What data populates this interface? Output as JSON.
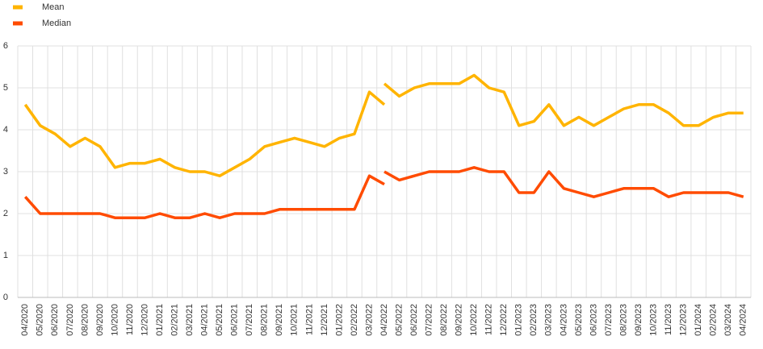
{
  "chart_data": {
    "type": "line",
    "categories": [
      "04/2020",
      "05/2020",
      "06/2020",
      "07/2020",
      "08/2020",
      "09/2020",
      "10/2020",
      "11/2020",
      "12/2020",
      "01/2021",
      "02/2021",
      "03/2021",
      "04/2021",
      "05/2021",
      "06/2021",
      "07/2021",
      "08/2021",
      "09/2021",
      "10/2021",
      "11/2021",
      "12/2021",
      "01/2022",
      "02/2022",
      "03/2022",
      "04/2022",
      "05/2022",
      "06/2022",
      "07/2022",
      "08/2022",
      "09/2022",
      "10/2022",
      "11/2022",
      "12/2022",
      "01/2023",
      "02/2023",
      "03/2023",
      "04/2023",
      "05/2023",
      "06/2023",
      "07/2023",
      "08/2023",
      "09/2023",
      "10/2023",
      "11/2023",
      "12/2023",
      "01/2024",
      "02/2024",
      "03/2024",
      "04/2024"
    ],
    "series": [
      {
        "name": "Mean",
        "color": "#ffb400",
        "pieces": [
          {
            "start": 0,
            "values": [
              4.6,
              4.1,
              3.9,
              3.6,
              3.8,
              3.6,
              3.1,
              3.2,
              3.2,
              3.3,
              3.1,
              3.0,
              3.0,
              2.9,
              3.1,
              3.3,
              3.6,
              3.7,
              3.8,
              3.7,
              3.6,
              3.8,
              3.9,
              4.9,
              4.6
            ]
          },
          {
            "start": 24,
            "values": [
              5.1,
              4.8,
              5.0,
              5.1,
              5.1,
              5.1,
              5.3,
              5.0,
              4.9,
              4.1,
              4.2,
              4.6,
              4.1,
              4.3,
              4.1,
              4.3,
              4.5,
              4.6,
              4.6,
              4.4,
              4.1,
              4.1,
              4.3,
              4.4,
              4.4
            ]
          }
        ]
      },
      {
        "name": "Median",
        "color": "#ff4b00",
        "pieces": [
          {
            "start": 0,
            "values": [
              2.4,
              2.0,
              2.0,
              2.0,
              2.0,
              2.0,
              1.9,
              1.9,
              1.9,
              2.0,
              1.9,
              1.9,
              2.0,
              1.9,
              2.0,
              2.0,
              2.0,
              2.1,
              2.1,
              2.1,
              2.1,
              2.1,
              2.1,
              2.9,
              2.7
            ]
          },
          {
            "start": 24,
            "values": [
              3.0,
              2.8,
              2.9,
              3.0,
              3.0,
              3.0,
              3.1,
              3.0,
              3.0,
              2.5,
              2.5,
              3.0,
              2.6,
              2.5,
              2.4,
              2.5,
              2.6,
              2.6,
              2.6,
              2.4,
              2.5,
              2.5,
              2.5,
              2.5,
              2.4
            ]
          }
        ]
      }
    ],
    "ylim": [
      0,
      6
    ],
    "yticks": [
      0,
      1,
      2,
      3,
      4,
      5,
      6
    ],
    "grid": true
  }
}
